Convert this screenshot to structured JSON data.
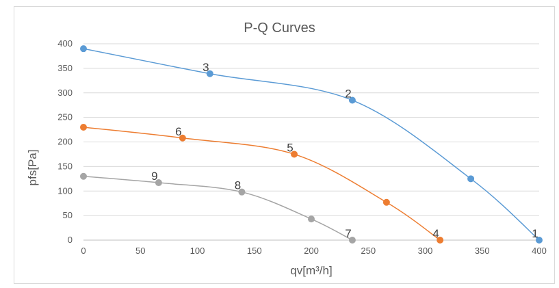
{
  "chart_data": {
    "type": "scatter",
    "title": "P-Q Curves",
    "xlabel": "qv[m³/h]",
    "ylabel": "pfs[Pa]",
    "xlim": [
      0,
      400
    ],
    "ylim": [
      0,
      400
    ],
    "x_ticks": [
      0,
      50,
      100,
      150,
      200,
      250,
      300,
      350,
      400
    ],
    "y_ticks": [
      0,
      50,
      100,
      150,
      200,
      250,
      300,
      350,
      400
    ],
    "grid": "horizontal",
    "legend": "none",
    "smooth": true,
    "series": [
      {
        "color": "#5b9bd5",
        "points": [
          {
            "x": 0,
            "y": 390
          },
          {
            "x": 111,
            "y": 339,
            "label": "3"
          },
          {
            "x": 236,
            "y": 285,
            "label": "2"
          },
          {
            "x": 340,
            "y": 125
          },
          {
            "x": 400,
            "y": 0,
            "label": "1"
          }
        ]
      },
      {
        "color": "#ed7d31",
        "points": [
          {
            "x": 0,
            "y": 230
          },
          {
            "x": 87,
            "y": 208,
            "label": "6"
          },
          {
            "x": 185,
            "y": 175,
            "label": "5"
          },
          {
            "x": 266,
            "y": 77
          },
          {
            "x": 313,
            "y": 0,
            "label": "4"
          }
        ]
      },
      {
        "color": "#a5a5a5",
        "points": [
          {
            "x": 0,
            "y": 130
          },
          {
            "x": 66,
            "y": 117,
            "label": "9"
          },
          {
            "x": 139,
            "y": 98,
            "label": "8"
          },
          {
            "x": 200,
            "y": 43
          },
          {
            "x": 236,
            "y": 0,
            "label": "7"
          }
        ]
      }
    ]
  }
}
